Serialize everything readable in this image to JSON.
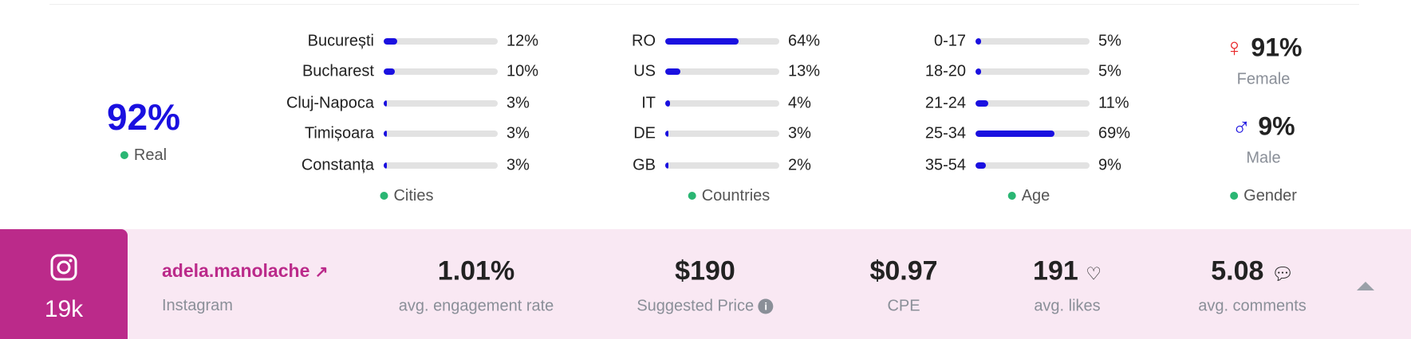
{
  "real": {
    "value": "92%",
    "label": "Real"
  },
  "cities": {
    "legend": "Cities",
    "items": [
      {
        "label": "București",
        "value": "12%",
        "percent": 12
      },
      {
        "label": "Bucharest",
        "value": "10%",
        "percent": 10
      },
      {
        "label": "Cluj-Napoca",
        "value": "3%",
        "percent": 3
      },
      {
        "label": "Timișoara",
        "value": "3%",
        "percent": 3
      },
      {
        "label": "Constanța",
        "value": "3%",
        "percent": 3
      }
    ]
  },
  "countries": {
    "legend": "Countries",
    "items": [
      {
        "label": "RO",
        "value": "64%",
        "percent": 64
      },
      {
        "label": "US",
        "value": "13%",
        "percent": 13
      },
      {
        "label": "IT",
        "value": "4%",
        "percent": 4
      },
      {
        "label": "DE",
        "value": "3%",
        "percent": 3
      },
      {
        "label": "GB",
        "value": "2%",
        "percent": 2
      }
    ]
  },
  "age": {
    "legend": "Age",
    "items": [
      {
        "label": "0-17",
        "value": "5%",
        "percent": 5
      },
      {
        "label": "18-20",
        "value": "5%",
        "percent": 5
      },
      {
        "label": "21-24",
        "value": "11%",
        "percent": 11
      },
      {
        "label": "25-34",
        "value": "69%",
        "percent": 69
      },
      {
        "label": "35-54",
        "value": "9%",
        "percent": 9
      }
    ]
  },
  "gender": {
    "legend": "Gender",
    "female_value": "91%",
    "female_label": "Female",
    "male_value": "9%",
    "male_label": "Male",
    "female_color": "#e8272a",
    "male_color": "#1a10e0"
  },
  "profile": {
    "platform_icon": "instagram-icon",
    "followers": "19k",
    "username": "adela.manolache",
    "platform": "Instagram"
  },
  "stats": {
    "engagement": {
      "value": "1.01%",
      "label": "avg. engagement rate"
    },
    "price": {
      "value": "$190",
      "label": "Suggested Price"
    },
    "cpe": {
      "value": "$0.97",
      "label": "CPE"
    },
    "likes": {
      "value": "191",
      "label": "avg. likes"
    },
    "comments": {
      "value": "5.08",
      "label": "avg. comments"
    }
  },
  "colors": {
    "accent": "#1a10e0",
    "brand": "#bb2a8a",
    "status_green": "#2ab673",
    "row_bg": "#f9e8f3"
  }
}
